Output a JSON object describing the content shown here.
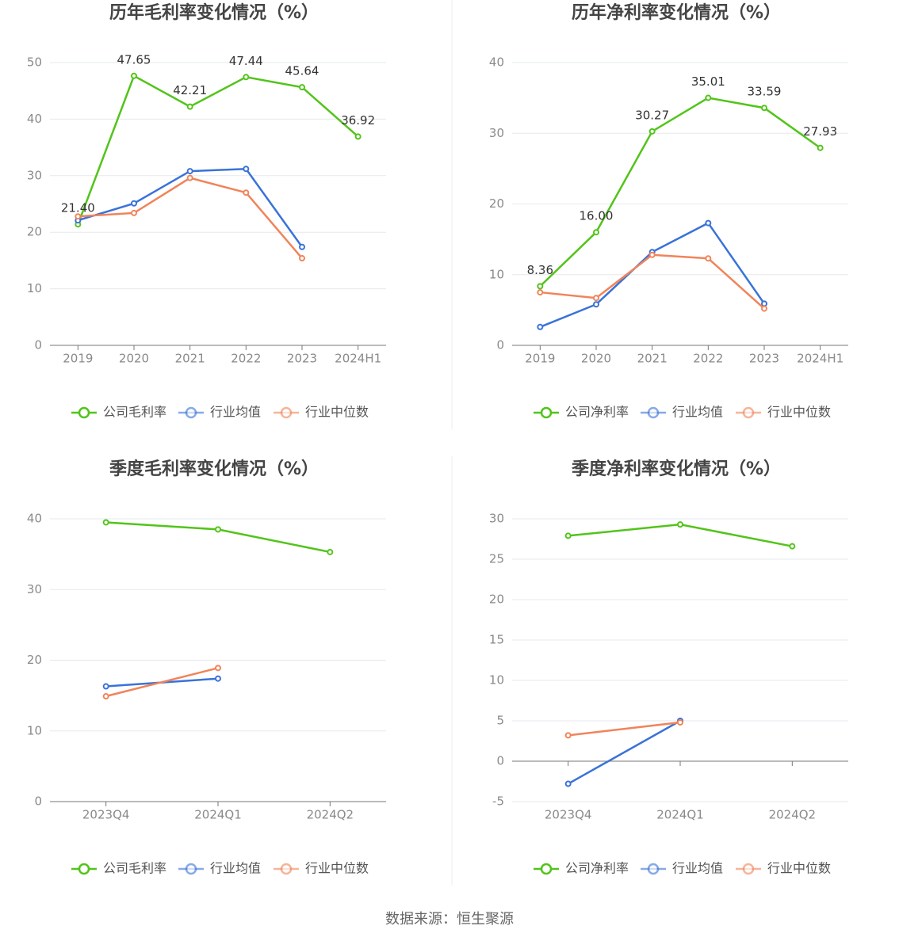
{
  "chart_data": [
    {
      "type": "line",
      "title": "历年毛利率变化情况（%）",
      "categories": [
        "2019",
        "2020",
        "2021",
        "2022",
        "2023",
        "2024H1"
      ],
      "series": [
        {
          "name": "公司毛利率",
          "color": "#52c41a",
          "values": [
            21.4,
            47.65,
            42.21,
            47.44,
            45.64,
            36.92
          ],
          "value_labels": [
            "21.40",
            "47.65",
            "42.21",
            "47.44",
            "45.64",
            "36.92"
          ]
        },
        {
          "name": "行业均值",
          "color": "#3a72d8",
          "values": [
            22.1,
            25.1,
            30.8,
            31.2,
            17.4,
            null
          ]
        },
        {
          "name": "行业中位数",
          "color": "#f0845a",
          "values": [
            22.8,
            23.4,
            29.6,
            27.0,
            15.4,
            null
          ]
        }
      ],
      "ylim": [
        0,
        50
      ],
      "yticks": [
        0,
        10,
        20,
        30,
        40,
        50
      ],
      "grid": true,
      "legend": "bottom"
    },
    {
      "type": "line",
      "title": "历年净利率变化情况（%）",
      "categories": [
        "2019",
        "2020",
        "2021",
        "2022",
        "2023",
        "2024H1"
      ],
      "series": [
        {
          "name": "公司净利率",
          "color": "#52c41a",
          "values": [
            8.36,
            16.0,
            30.27,
            35.01,
            33.59,
            27.93
          ],
          "value_labels": [
            "8.36",
            "16.00",
            "30.27",
            "35.01",
            "33.59",
            "27.93"
          ]
        },
        {
          "name": "行业均值",
          "color": "#3a72d8",
          "values": [
            2.6,
            5.8,
            13.2,
            17.3,
            5.9,
            null
          ]
        },
        {
          "name": "行业中位数",
          "color": "#f0845a",
          "values": [
            7.5,
            6.7,
            12.8,
            12.3,
            5.2,
            null
          ]
        }
      ],
      "ylim": [
        0,
        40
      ],
      "yticks": [
        0,
        10,
        20,
        30,
        40
      ],
      "grid": true,
      "legend": "bottom"
    },
    {
      "type": "line",
      "title": "季度毛利率变化情况（%）",
      "categories": [
        "2023Q4",
        "2024Q1",
        "2024Q2"
      ],
      "series": [
        {
          "name": "公司毛利率",
          "color": "#52c41a",
          "values": [
            39.5,
            38.5,
            35.3
          ]
        },
        {
          "name": "行业均值",
          "color": "#3a72d8",
          "values": [
            16.3,
            17.4,
            null
          ]
        },
        {
          "name": "行业中位数",
          "color": "#f0845a",
          "values": [
            14.9,
            18.9,
            null
          ]
        }
      ],
      "ylim": [
        0,
        40
      ],
      "yticks": [
        0,
        10,
        20,
        30,
        40
      ],
      "grid": true,
      "legend": "bottom"
    },
    {
      "type": "line",
      "title": "季度净利率变化情况（%）",
      "categories": [
        "2023Q4",
        "2024Q1",
        "2024Q2"
      ],
      "series": [
        {
          "name": "公司净利率",
          "color": "#52c41a",
          "values": [
            27.9,
            29.3,
            26.6
          ]
        },
        {
          "name": "行业均值",
          "color": "#3a72d8",
          "values": [
            -2.8,
            5.0,
            null
          ]
        },
        {
          "name": "行业中位数",
          "color": "#f0845a",
          "values": [
            3.2,
            4.8,
            null
          ]
        }
      ],
      "ylim": [
        -5,
        30
      ],
      "yticks": [
        -5,
        0,
        5,
        10,
        15,
        20,
        25,
        30
      ],
      "grid": true,
      "legend": "bottom"
    }
  ],
  "source": "数据来源：恒生聚源"
}
